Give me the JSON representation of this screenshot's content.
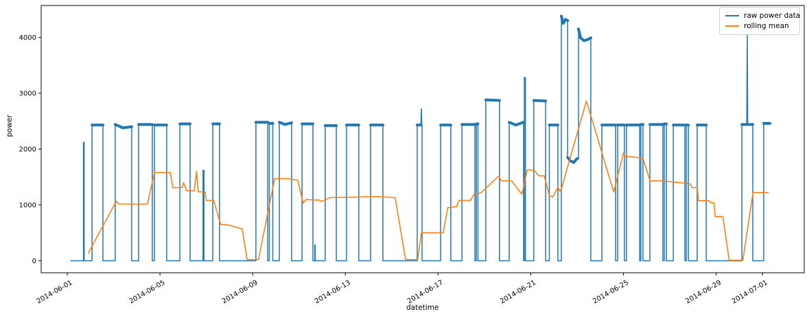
{
  "chart_data": {
    "type": "line",
    "title": "",
    "xlabel": "datetime",
    "ylabel": "power",
    "x_unit": "days since 2014-06-01",
    "xlim": [
      -1.125,
      31.8
    ],
    "ylim": [
      -215,
      4570
    ],
    "grid": false,
    "legend_position": "upper right",
    "x_ticks": [
      {
        "day": 0,
        "label": "2014-06-01"
      },
      {
        "day": 4,
        "label": "2014-06-05"
      },
      {
        "day": 8,
        "label": "2014-06-09"
      },
      {
        "day": 12,
        "label": "2014-06-13"
      },
      {
        "day": 16,
        "label": "2014-06-17"
      },
      {
        "day": 20,
        "label": "2014-06-21"
      },
      {
        "day": 24,
        "label": "2014-06-25"
      },
      {
        "day": 28,
        "label": "2014-06-29"
      },
      {
        "day": 30,
        "label": "2014-07-01"
      }
    ],
    "y_ticks": [
      0,
      1000,
      2000,
      3000,
      4000
    ],
    "series": [
      {
        "name": "raw power data",
        "color": "#1f77b4",
        "points": [
          [
            0.13,
            0
          ],
          [
            0.7,
            0
          ],
          [
            0.7,
            2120
          ],
          [
            0.73,
            2120
          ],
          [
            0.73,
            0
          ],
          [
            1.07,
            0
          ],
          [
            1.07,
            2430
          ],
          [
            1.54,
            2430
          ],
          [
            1.54,
            0
          ],
          [
            2.07,
            0
          ],
          [
            2.07,
            2440
          ],
          [
            2.4,
            2380
          ],
          [
            2.78,
            2400
          ],
          [
            2.78,
            0
          ],
          [
            3.08,
            0
          ],
          [
            3.08,
            2440
          ],
          [
            3.67,
            2440
          ],
          [
            3.67,
            0
          ],
          [
            3.76,
            0
          ],
          [
            3.76,
            2430
          ],
          [
            4.29,
            2430
          ],
          [
            4.29,
            0
          ],
          [
            4.86,
            0
          ],
          [
            4.86,
            2450
          ],
          [
            5.3,
            2450
          ],
          [
            5.3,
            0
          ],
          [
            5.86,
            0
          ],
          [
            5.86,
            1620
          ],
          [
            5.9,
            1620
          ],
          [
            5.9,
            0
          ],
          [
            6.28,
            0
          ],
          [
            6.28,
            2450
          ],
          [
            6.57,
            2450
          ],
          [
            6.57,
            0
          ],
          [
            8.14,
            0
          ],
          [
            8.14,
            2480
          ],
          [
            8.65,
            2480
          ],
          [
            8.65,
            0
          ],
          [
            8.72,
            0
          ],
          [
            8.72,
            2460
          ],
          [
            8.87,
            2460
          ],
          [
            8.87,
            0
          ],
          [
            9.15,
            0
          ],
          [
            9.15,
            2480
          ],
          [
            9.4,
            2440
          ],
          [
            9.68,
            2470
          ],
          [
            9.68,
            0
          ],
          [
            10.13,
            0
          ],
          [
            10.13,
            2450
          ],
          [
            10.6,
            2450
          ],
          [
            10.6,
            0
          ],
          [
            10.68,
            0
          ],
          [
            10.68,
            280
          ],
          [
            10.7,
            280
          ],
          [
            10.7,
            0
          ],
          [
            11.13,
            0
          ],
          [
            11.13,
            2420
          ],
          [
            11.61,
            2420
          ],
          [
            11.61,
            0
          ],
          [
            12.05,
            0
          ],
          [
            12.05,
            2430
          ],
          [
            12.58,
            2430
          ],
          [
            12.58,
            0
          ],
          [
            13.09,
            0
          ],
          [
            13.09,
            2430
          ],
          [
            13.62,
            2430
          ],
          [
            13.62,
            0
          ],
          [
            15.1,
            0
          ],
          [
            15.1,
            2430
          ],
          [
            15.26,
            2430
          ],
          [
            15.28,
            2720
          ],
          [
            15.3,
            2430
          ],
          [
            15.31,
            2430
          ],
          [
            15.31,
            0
          ],
          [
            16.11,
            0
          ],
          [
            16.11,
            2430
          ],
          [
            16.55,
            2430
          ],
          [
            16.55,
            0
          ],
          [
            17.03,
            0
          ],
          [
            17.03,
            2440
          ],
          [
            17.59,
            2440
          ],
          [
            17.59,
            0
          ],
          [
            17.65,
            0
          ],
          [
            17.65,
            2450
          ],
          [
            17.72,
            2450
          ],
          [
            17.72,
            0
          ],
          [
            18.06,
            0
          ],
          [
            18.06,
            2880
          ],
          [
            18.65,
            2870
          ],
          [
            18.65,
            0
          ],
          [
            19.07,
            0
          ],
          [
            19.07,
            2480
          ],
          [
            19.35,
            2430
          ],
          [
            19.69,
            2480
          ],
          [
            19.69,
            0
          ],
          [
            19.72,
            0
          ],
          [
            19.72,
            3280
          ],
          [
            19.77,
            3280
          ],
          [
            19.77,
            0
          ],
          [
            20.13,
            0
          ],
          [
            20.13,
            2870
          ],
          [
            20.64,
            2860
          ],
          [
            20.64,
            0
          ],
          [
            20.8,
            0
          ],
          [
            20.8,
            2430
          ],
          [
            21.17,
            2430
          ],
          [
            21.17,
            0
          ],
          [
            21.32,
            0
          ],
          [
            21.32,
            4380
          ],
          [
            21.4,
            4250
          ],
          [
            21.5,
            4320
          ],
          [
            21.59,
            4300
          ],
          [
            21.59,
            1850
          ],
          [
            21.7,
            1790
          ],
          [
            21.85,
            1760
          ],
          [
            22.0,
            1830
          ],
          [
            22.06,
            1820
          ],
          [
            22.06,
            4150
          ],
          [
            22.15,
            3990
          ],
          [
            22.3,
            3940
          ],
          [
            22.45,
            3960
          ],
          [
            22.59,
            3990
          ],
          [
            22.59,
            0
          ],
          [
            23.07,
            0
          ],
          [
            23.07,
            2430
          ],
          [
            23.66,
            2430
          ],
          [
            23.66,
            0
          ],
          [
            23.75,
            0
          ],
          [
            23.75,
            2430
          ],
          [
            24.04,
            2430
          ],
          [
            24.04,
            0
          ],
          [
            24.13,
            0
          ],
          [
            24.13,
            2430
          ],
          [
            24.7,
            2430
          ],
          [
            24.7,
            0
          ],
          [
            24.75,
            0
          ],
          [
            24.75,
            2440
          ],
          [
            24.84,
            2440
          ],
          [
            24.84,
            0
          ],
          [
            25.14,
            0
          ],
          [
            25.14,
            2440
          ],
          [
            25.7,
            2440
          ],
          [
            25.7,
            0
          ],
          [
            25.76,
            0
          ],
          [
            25.76,
            2450
          ],
          [
            25.85,
            2450
          ],
          [
            25.85,
            0
          ],
          [
            26.15,
            0
          ],
          [
            26.15,
            2430
          ],
          [
            26.65,
            2430
          ],
          [
            26.65,
            0
          ],
          [
            26.71,
            0
          ],
          [
            26.71,
            2430
          ],
          [
            26.8,
            2430
          ],
          [
            26.8,
            0
          ],
          [
            27.18,
            0
          ],
          [
            27.18,
            2430
          ],
          [
            27.57,
            2430
          ],
          [
            27.57,
            0
          ],
          [
            29.11,
            0
          ],
          [
            29.11,
            2440
          ],
          [
            29.32,
            2440
          ],
          [
            29.34,
            4080
          ],
          [
            29.36,
            2440
          ],
          [
            29.58,
            2440
          ],
          [
            29.58,
            0
          ],
          [
            30.05,
            0
          ],
          [
            30.05,
            2460
          ],
          [
            30.32,
            2460
          ]
        ]
      },
      {
        "name": "rolling mean",
        "color": "#ff7f0e",
        "points": [
          [
            0.9,
            130
          ],
          [
            2.07,
            1030
          ],
          [
            2.13,
            1065
          ],
          [
            2.22,
            1015
          ],
          [
            3.46,
            1015
          ],
          [
            3.76,
            1580
          ],
          [
            4.45,
            1580
          ],
          [
            4.55,
            1310
          ],
          [
            4.95,
            1310
          ],
          [
            5.02,
            1395
          ],
          [
            5.15,
            1255
          ],
          [
            5.48,
            1250
          ],
          [
            5.58,
            1600
          ],
          [
            5.65,
            1235
          ],
          [
            5.95,
            1230
          ],
          [
            6.0,
            1080
          ],
          [
            6.32,
            1080
          ],
          [
            6.62,
            650
          ],
          [
            6.95,
            640
          ],
          [
            7.55,
            570
          ],
          [
            7.76,
            20
          ],
          [
            8.25,
            20
          ],
          [
            8.95,
            1470
          ],
          [
            9.55,
            1470
          ],
          [
            9.95,
            1440
          ],
          [
            10.18,
            1030
          ],
          [
            10.3,
            1095
          ],
          [
            10.9,
            1085
          ],
          [
            10.96,
            1060
          ],
          [
            11.35,
            1130
          ],
          [
            12.5,
            1140
          ],
          [
            13.4,
            1150
          ],
          [
            14.15,
            1130
          ],
          [
            14.6,
            20
          ],
          [
            15.12,
            20
          ],
          [
            15.28,
            500
          ],
          [
            16.22,
            500
          ],
          [
            16.42,
            950
          ],
          [
            16.8,
            970
          ],
          [
            16.9,
            1080
          ],
          [
            17.4,
            1080
          ],
          [
            17.55,
            1190
          ],
          [
            17.85,
            1215
          ],
          [
            18.63,
            1520
          ],
          [
            18.72,
            1430
          ],
          [
            19.17,
            1430
          ],
          [
            19.62,
            1190
          ],
          [
            19.85,
            1630
          ],
          [
            20.15,
            1615
          ],
          [
            20.36,
            1520
          ],
          [
            20.58,
            1520
          ],
          [
            20.8,
            1170
          ],
          [
            20.95,
            1140
          ],
          [
            21.18,
            1320
          ],
          [
            21.25,
            1245
          ],
          [
            21.33,
            1300
          ],
          [
            22.4,
            2860
          ],
          [
            23.58,
            1230
          ],
          [
            24.0,
            1930
          ],
          [
            24.06,
            1870
          ],
          [
            24.7,
            1845
          ],
          [
            24.74,
            1820
          ],
          [
            24.85,
            1820
          ],
          [
            25.15,
            1430
          ],
          [
            25.68,
            1430
          ],
          [
            26.87,
            1380
          ],
          [
            26.96,
            1310
          ],
          [
            27.19,
            1310
          ],
          [
            27.23,
            1075
          ],
          [
            27.7,
            1075
          ],
          [
            27.75,
            1040
          ],
          [
            27.9,
            1040
          ],
          [
            27.96,
            790
          ],
          [
            28.29,
            790
          ],
          [
            28.56,
            10
          ],
          [
            29.15,
            10
          ],
          [
            29.59,
            1220
          ],
          [
            30.27,
            1220
          ]
        ]
      }
    ]
  },
  "legend": {
    "entries": [
      {
        "label": "raw power data",
        "color": "#1f77b4"
      },
      {
        "label": "rolling mean",
        "color": "#ff7f0e"
      }
    ]
  },
  "style": {
    "axis_color": "#000000",
    "background": "#ffffff"
  }
}
